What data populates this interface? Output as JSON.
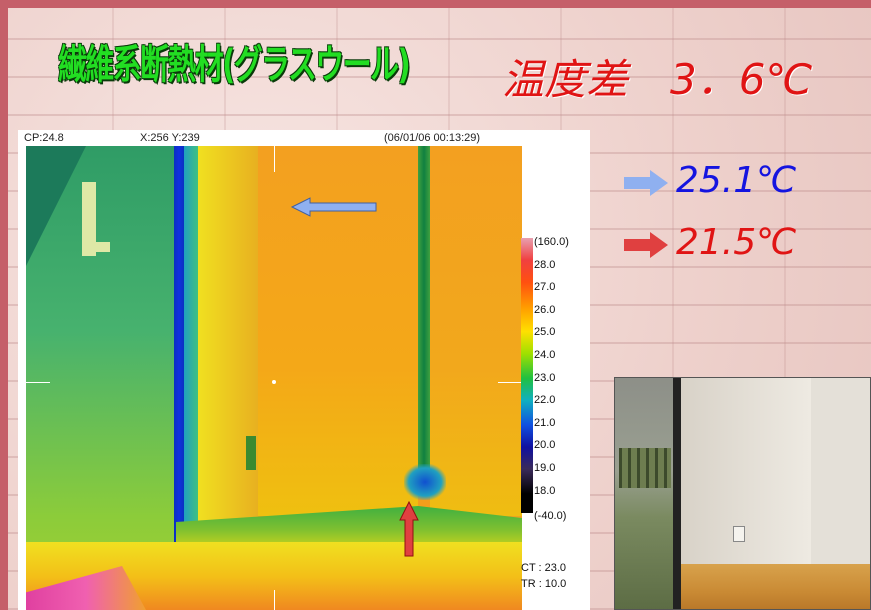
{
  "title": "繊維系断熱材(グラスウール)",
  "temperature_difference": "温度差　3．6℃",
  "thermal_image": {
    "cp": "CP:24.8",
    "coords": "X:256 Y:239",
    "timestamp": "(06/01/06 00:13:29)",
    "legend": [
      "(160.0)",
      "28.0",
      "27.0",
      "26.0",
      "25.0",
      "24.0",
      "23.0",
      "22.0",
      "21.0",
      "20.0",
      "19.0",
      "18.0",
      "(-40.0)"
    ],
    "ct": "CT : 23.0",
    "tr": "TR : 10.0"
  },
  "readings": [
    {
      "value": "25.1℃",
      "color": "#1414e0",
      "arrow_color": "#8fb0f0"
    },
    {
      "value": "21.5℃",
      "color": "#e01414",
      "arrow_color": "#e04040"
    }
  ]
}
